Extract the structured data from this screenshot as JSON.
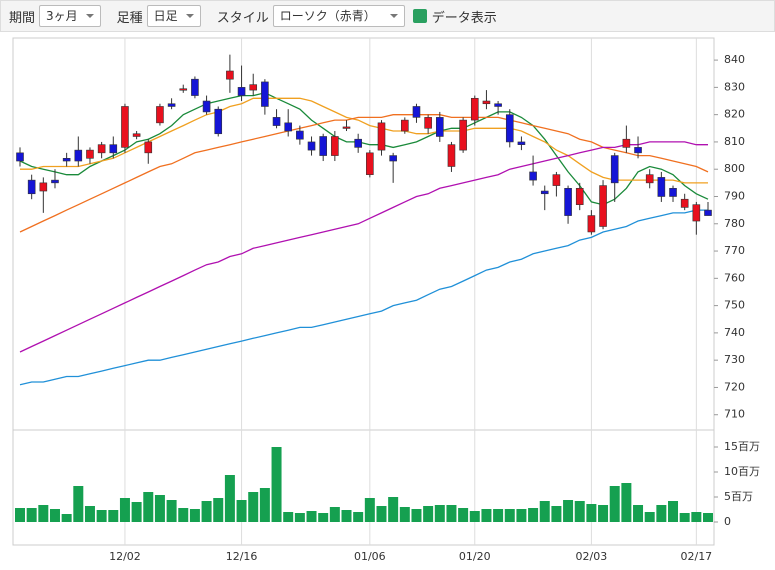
{
  "toolbar": {
    "period_label": "期間",
    "period_value": "3ヶ月",
    "bar_label": "足種",
    "bar_value": "日足",
    "style_label": "スタイル",
    "style_value": "ローソク（赤青）",
    "data_label": "データ表示"
  },
  "chart_data": {
    "type": "candlestick",
    "categories": [
      null,
      null,
      null,
      null,
      null,
      null,
      null,
      null,
      null,
      "12/02",
      null,
      null,
      null,
      null,
      null,
      null,
      null,
      null,
      null,
      "12/16",
      null,
      null,
      null,
      null,
      null,
      null,
      null,
      null,
      null,
      null,
      "01/06",
      null,
      null,
      null,
      null,
      null,
      null,
      null,
      null,
      "01/20",
      null,
      null,
      null,
      null,
      null,
      null,
      null,
      null,
      null,
      "02/03",
      null,
      null,
      null,
      null,
      null,
      null,
      null,
      null,
      "02/17",
      null
    ],
    "open": [
      806,
      796,
      792,
      796,
      804,
      807,
      804,
      806,
      809,
      808,
      812,
      806,
      817,
      824,
      829,
      833,
      825,
      822,
      833,
      830,
      829,
      832,
      819,
      817,
      814,
      810,
      812,
      805,
      815,
      811,
      798,
      807,
      805,
      814,
      823,
      815,
      819,
      801,
      807,
      818,
      824,
      824,
      820,
      810,
      799,
      792,
      794,
      793,
      787,
      777,
      779,
      805,
      808,
      808,
      795,
      797,
      793,
      786,
      781,
      785
    ],
    "high": [
      808,
      798,
      797,
      800,
      806,
      812,
      808,
      810,
      812,
      824,
      814,
      811,
      824,
      826,
      831,
      834,
      827,
      823,
      842,
      838,
      835,
      833,
      822,
      822,
      816,
      812,
      813,
      814,
      818,
      813,
      807,
      818,
      806,
      819,
      824,
      820,
      821,
      810,
      819,
      827,
      829,
      825,
      822,
      812,
      805,
      794,
      799,
      794,
      795,
      785,
      796,
      806,
      816,
      812,
      800,
      799,
      794,
      791,
      788,
      788
    ],
    "low": [
      801,
      789,
      784,
      793,
      801,
      801,
      802,
      804,
      804,
      806,
      811,
      802,
      816,
      822,
      828,
      826,
      820,
      812,
      828,
      825,
      827,
      820,
      815,
      812,
      809,
      805,
      803,
      803,
      814,
      806,
      797,
      805,
      795,
      813,
      817,
      813,
      810,
      799,
      806,
      816,
      822,
      820,
      808,
      807,
      794,
      785,
      790,
      780,
      785,
      776,
      778,
      788,
      806,
      804,
      793,
      788,
      788,
      785,
      776,
      783
    ],
    "close": [
      803,
      791,
      795,
      795,
      803,
      803,
      807,
      809,
      806,
      823,
      813,
      810,
      823,
      823,
      829.5,
      827,
      821,
      813,
      836,
      827,
      831,
      823,
      816,
      814,
      811,
      807,
      805,
      812,
      815.5,
      808,
      806,
      817,
      803,
      818,
      819,
      819,
      812,
      809,
      818,
      826,
      825,
      823,
      810,
      809,
      796,
      791,
      798,
      783,
      793,
      783,
      794,
      795,
      811,
      806,
      798,
      790,
      790,
      789,
      787,
      783
    ],
    "up_color": "#e8101e",
    "down_color": "#1515d6",
    "ylim": [
      704.4,
      848.1
    ],
    "yticks": [
      710,
      720,
      730,
      740,
      750,
      760,
      770,
      780,
      790,
      800,
      810,
      820,
      830,
      840
    ],
    "moving_averages": [
      {
        "color": "#1a8a3a",
        "values": [
          803,
          801,
          800,
          799,
          798,
          798,
          801,
          803,
          805,
          807,
          810,
          811,
          813,
          816,
          820,
          822,
          824,
          825,
          826,
          827,
          827,
          828,
          826,
          824,
          822,
          818,
          815,
          812,
          810,
          810,
          809,
          809,
          808,
          809,
          810,
          812,
          814,
          815,
          815,
          817,
          819,
          821,
          821,
          819,
          816,
          811,
          805,
          799,
          794,
          788,
          787,
          789,
          793,
          799,
          801,
          800,
          798,
          794,
          791,
          789
        ]
      },
      {
        "color": "#f0a020",
        "values": [
          800,
          800,
          801,
          801,
          801,
          801,
          802,
          803,
          804,
          806,
          808,
          810,
          812,
          814,
          816,
          818,
          820,
          821,
          823,
          824,
          826,
          826,
          826,
          826,
          826,
          825,
          823,
          821,
          819,
          818,
          816,
          815,
          814,
          814,
          813,
          813,
          814,
          814,
          814,
          815,
          815,
          815,
          815,
          814,
          812,
          810,
          807,
          805,
          802,
          799,
          797,
          796,
          796,
          796,
          796,
          796,
          796,
          795,
          795,
          795
        ]
      },
      {
        "color": "#f07020",
        "values": [
          777,
          779,
          781,
          783,
          785,
          787,
          789,
          791,
          793,
          795,
          797,
          799,
          801,
          802,
          804,
          806,
          807,
          808,
          809,
          810,
          811,
          812,
          813,
          814,
          815,
          816,
          817,
          818,
          818,
          819,
          819,
          819,
          820,
          820,
          820,
          820,
          820,
          819,
          819,
          819,
          819,
          819,
          818,
          817,
          816,
          815,
          814,
          813,
          811,
          810,
          808,
          807,
          806,
          805,
          805,
          804,
          803,
          802,
          801,
          799
        ]
      },
      {
        "color": "#b010b0",
        "values": [
          733,
          735,
          737,
          739,
          741,
          743,
          745,
          747,
          749,
          751,
          753,
          755,
          757,
          759,
          761,
          763,
          765,
          766,
          768,
          769,
          771,
          772,
          773,
          774,
          775,
          776,
          777,
          778,
          779,
          780,
          782,
          784,
          786,
          788,
          790,
          791,
          793,
          794,
          795,
          796,
          797,
          798,
          800,
          801,
          802,
          803,
          804,
          805,
          806,
          807,
          808,
          808,
          809,
          809,
          810,
          810,
          810,
          810,
          809,
          809
        ]
      },
      {
        "color": "#2090d8",
        "values": [
          721,
          722,
          722,
          723,
          724,
          724,
          725,
          726,
          727,
          728,
          729,
          730,
          730,
          731,
          732,
          733,
          734,
          735,
          736,
          737,
          738,
          739,
          740,
          741,
          742,
          742,
          743,
          744,
          745,
          746,
          747,
          748,
          750,
          751,
          752,
          754,
          756,
          757,
          759,
          761,
          763,
          764,
          766,
          767,
          769,
          770,
          771,
          772,
          774,
          775,
          777,
          778,
          779,
          781,
          782,
          783,
          784,
          784,
          785,
          785
        ]
      }
    ],
    "volume": {
      "color": "#15a050",
      "ylim": [
        0,
        18
      ],
      "yticks": [
        0,
        {
          "value": 5,
          "label": "5百万"
        },
        {
          "value": 10,
          "label": "10百万"
        },
        {
          "value": 15,
          "label": "15百万"
        }
      ],
      "values": [
        2.8,
        2.8,
        3.4,
        2.6,
        1.6,
        7.2,
        3.2,
        2.4,
        2.4,
        4.8,
        4,
        6,
        5.4,
        4.4,
        2.8,
        2.6,
        4.2,
        4.8,
        9.4,
        4.4,
        6,
        6.8,
        15,
        2,
        1.8,
        2.2,
        1.8,
        3,
        2.4,
        2,
        4.8,
        3.2,
        5,
        3,
        2.6,
        3.2,
        3.4,
        3.4,
        2.8,
        2.2,
        2.6,
        2.6,
        2.6,
        2.6,
        2.8,
        4.2,
        3.2,
        4.4,
        4.2,
        3.6,
        3.4,
        7.2,
        7.8,
        3.4,
        2,
        3.4,
        4.2,
        1.8,
        2,
        1.8
      ]
    }
  }
}
